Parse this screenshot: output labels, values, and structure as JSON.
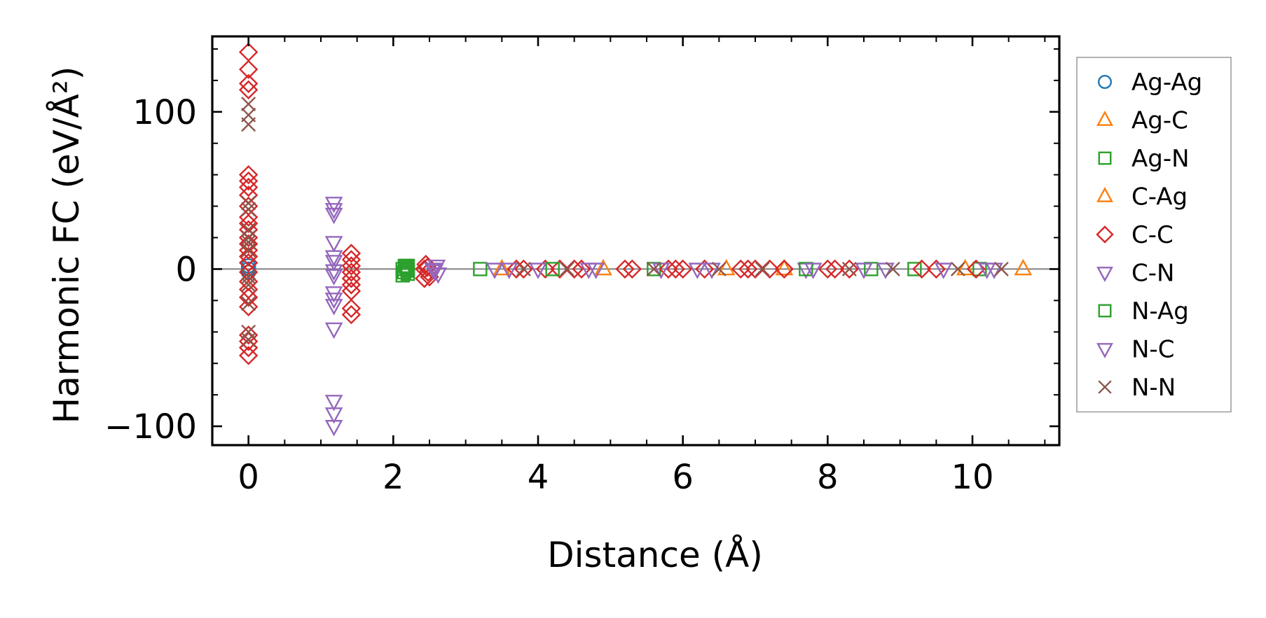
{
  "chart_data": {
    "type": "scatter",
    "title": "",
    "xlabel": "Distance (Å)",
    "ylabel": "Harmonic FC (eV/Å²)",
    "xlim": [
      -0.5,
      11.2
    ],
    "ylim": [
      -112,
      148
    ],
    "xticks": [
      0,
      2,
      4,
      6,
      8,
      10
    ],
    "xtick_labels": [
      "0",
      "2",
      "4",
      "6",
      "8",
      "10"
    ],
    "yticks": [
      -100,
      0,
      100
    ],
    "ytick_labels": [
      "−100",
      "0",
      "100"
    ],
    "x_minor_step": 0.5,
    "y_minor_step": 20,
    "zero_line": true,
    "legend_position": "outside-right",
    "series": [
      {
        "name": "Ag-Ag",
        "marker": "circle",
        "color": "#1f77b4",
        "x": [
          0,
          0,
          0
        ],
        "y": [
          0,
          2,
          -2
        ]
      },
      {
        "name": "Ag-C",
        "marker": "triangle-up",
        "color": "#ff7f0e",
        "x": [
          10.7,
          4.9,
          6.6
        ],
        "y": [
          0,
          0,
          0
        ]
      },
      {
        "name": "Ag-N",
        "marker": "square",
        "color": "#2ca02c",
        "x": [
          2.13,
          2.15,
          2.18,
          2.2,
          2.13,
          2.16,
          2.2,
          3.2,
          5.6,
          8.6,
          9.2,
          10.1
        ],
        "y": [
          0,
          -2,
          1,
          -1,
          -4,
          2,
          -3,
          0,
          0,
          0,
          0,
          0
        ]
      },
      {
        "name": "C-Ag",
        "marker": "triangle-up",
        "color": "#ff7f0e",
        "x": [
          3.5,
          7.4,
          9.9
        ],
        "y": [
          0,
          0,
          0
        ]
      },
      {
        "name": "C-C",
        "marker": "diamond",
        "color": "#d62728",
        "x": [
          0,
          0,
          0,
          0,
          0,
          0,
          0,
          0,
          0,
          0,
          0,
          0,
          0,
          0,
          0,
          0,
          0,
          0,
          0,
          0,
          0,
          0,
          0,
          0,
          0,
          0,
          1.42,
          1.42,
          1.42,
          1.42,
          1.42,
          1.42,
          1.42,
          1.42,
          1.42,
          2.43,
          2.45,
          2.48,
          2.5,
          2.43,
          2.47,
          3.7,
          3.8,
          4.1,
          4.3,
          4.5,
          4.6,
          5.2,
          5.3,
          5.8,
          5.9,
          6.0,
          6.3,
          6.8,
          6.9,
          7.0,
          7.2,
          7.4,
          8.0,
          8.1,
          8.3,
          9.3,
          9.5,
          10.05
        ],
        "y": [
          138,
          127,
          118,
          114,
          60,
          56,
          52,
          47,
          40,
          33,
          29,
          25,
          20,
          16,
          12,
          8,
          4,
          -2,
          -8,
          -13,
          -18,
          -24,
          -42,
          -46,
          -50,
          -55,
          10,
          6,
          2,
          -2,
          -6,
          -10,
          -14,
          -25,
          -29,
          0,
          3,
          -2,
          -5,
          -6,
          1,
          0,
          0,
          0,
          0,
          0,
          0,
          0,
          0,
          0,
          0,
          0,
          0,
          0,
          0,
          0,
          0,
          0,
          0,
          0,
          0,
          0,
          0,
          0
        ]
      },
      {
        "name": "C-N",
        "marker": "triangle-down",
        "color": "#9467bd",
        "x": [
          1.18,
          1.18,
          1.18,
          1.18,
          1.18,
          1.18,
          1.18,
          1.18,
          1.18,
          1.18,
          1.18,
          1.18,
          1.18,
          1.18,
          1.18,
          2.55,
          2.6,
          2.62,
          2.57,
          3.4,
          4.0,
          4.7,
          5.7,
          6.4,
          7.7,
          8.5,
          9.6,
          10.3
        ],
        "y": [
          42,
          38,
          35,
          17,
          8,
          5,
          -1,
          -4,
          -15,
          -19,
          -23,
          -38,
          -84,
          -92,
          -100,
          0,
          2,
          -3,
          -1,
          0,
          0,
          0,
          0,
          0,
          0,
          0,
          0,
          0
        ]
      },
      {
        "name": "N-Ag",
        "marker": "square",
        "color": "#2ca02c",
        "x": [
          2.18,
          2.2,
          4.2,
          7.7
        ],
        "y": [
          0,
          2,
          0,
          0
        ]
      },
      {
        "name": "N-C",
        "marker": "triangle-down",
        "color": "#9467bd",
        "x": [
          3.6,
          4.8,
          6.2,
          7.8,
          8.8,
          10.2
        ],
        "y": [
          0,
          0,
          0,
          0,
          0,
          0
        ]
      },
      {
        "name": "N-N",
        "marker": "x",
        "color": "#8c564b",
        "x": [
          0,
          0,
          0,
          0,
          0,
          0,
          0,
          0,
          0,
          0,
          0,
          0,
          0,
          0,
          3.8,
          4.4,
          5.6,
          6.5,
          7.1,
          8.3,
          8.9,
          9.8,
          10.4
        ],
        "y": [
          105,
          98,
          92,
          42,
          38,
          25,
          20,
          17,
          12,
          -5,
          -10,
          -22,
          -40,
          -45,
          0,
          0,
          0,
          0,
          0,
          0,
          0,
          0,
          0
        ]
      }
    ]
  }
}
